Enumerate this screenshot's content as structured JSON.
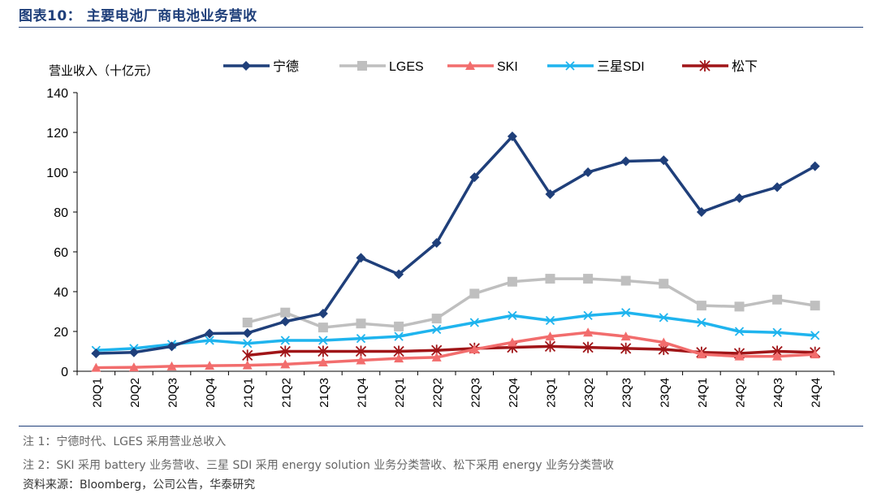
{
  "figure": {
    "title": "图表10：  主要电池厂商电池业务营收",
    "notes": [
      "注 1：宁德时代、LGES 采用营业总收入",
      "注 2：SKI 采用 battery 业务营收、三星 SDI 采用 energy solution 业务分类营收、松下采用 energy 业务分类营收"
    ],
    "source": "资料来源：Bloomberg，公司公告，华泰研究"
  },
  "chart_data": {
    "type": "line",
    "title": "",
    "ylabel": "营业收入（十亿元）",
    "xlabel": "",
    "ylim": [
      0,
      140
    ],
    "yticks": [
      0,
      20,
      40,
      60,
      80,
      100,
      120,
      140
    ],
    "grid": false,
    "legend_position": "top",
    "categories": [
      "20Q1",
      "20Q2",
      "20Q3",
      "20Q4",
      "21Q1",
      "21Q2",
      "21Q3",
      "21Q4",
      "22Q1",
      "22Q2",
      "22Q3",
      "22Q4",
      "23Q1",
      "23Q2",
      "23Q3",
      "23Q4",
      "24Q1",
      "24Q2",
      "24Q3",
      "24Q4"
    ],
    "series": [
      {
        "name": "宁德",
        "color": "#1f3f7a",
        "marker": "diamond",
        "values": [
          9,
          9.5,
          12.5,
          19,
          19.2,
          25,
          29,
          57,
          48.7,
          64.5,
          97.5,
          118,
          89,
          100,
          105.5,
          106,
          80,
          87,
          92.5,
          103
        ]
      },
      {
        "name": "LGES",
        "color": "#bfbfbf",
        "marker": "square",
        "values": [
          null,
          null,
          null,
          null,
          24.5,
          29.5,
          22,
          24,
          22.5,
          26.5,
          39,
          45,
          46.5,
          46.5,
          45.5,
          44,
          33,
          32.5,
          36,
          33
        ]
      },
      {
        "name": "SKI",
        "color": "#f26d6d",
        "marker": "triangle",
        "values": [
          1.8,
          2,
          2.5,
          2.8,
          3,
          3.5,
          4.5,
          5.5,
          6.5,
          7,
          11,
          14.5,
          17.5,
          19.5,
          17.5,
          14.5,
          8.5,
          7.5,
          7.5,
          8.5
        ]
      },
      {
        "name": "三星SDI",
        "color": "#1fb4ee",
        "marker": "x",
        "values": [
          10.5,
          11.5,
          13.5,
          15.5,
          14,
          15.5,
          15.5,
          16.5,
          17.5,
          21,
          24.5,
          28,
          25.5,
          28,
          29.5,
          27,
          24.5,
          20,
          19.5,
          18
        ]
      },
      {
        "name": "松下",
        "color": "#a01518",
        "marker": "star",
        "values": [
          null,
          null,
          null,
          null,
          8,
          10,
          10,
          10,
          10,
          10.5,
          11.5,
          12,
          12.5,
          12,
          11.5,
          11,
          9.5,
          9,
          10,
          9.5
        ]
      }
    ]
  }
}
